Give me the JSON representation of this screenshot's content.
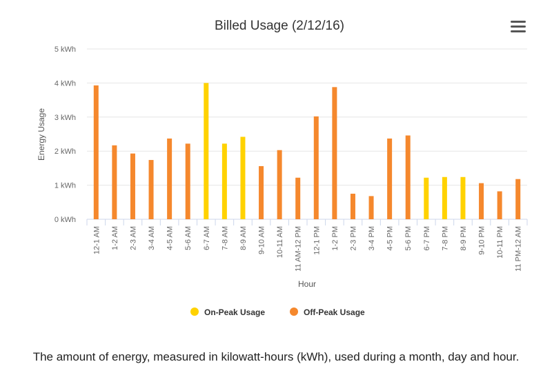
{
  "chart_data": {
    "type": "bar",
    "title": "Billed Usage (2/12/16)",
    "xlabel": "Hour",
    "ylabel": "Energy Usage",
    "ylim": [
      0,
      5
    ],
    "y_ticks": [
      "0 kWh",
      "1 kWh",
      "2 kWh",
      "3 kWh",
      "4 kWh",
      "5 kWh"
    ],
    "grid": true,
    "legend_position": "bottom-center",
    "categories": [
      "12-1 AM",
      "1-2 AM",
      "2-3 AM",
      "3-4 AM",
      "4-5 AM",
      "5-6 AM",
      "6-7 AM",
      "7-8 AM",
      "8-9 AM",
      "9-10 AM",
      "10-11 AM",
      "11 AM-12 PM",
      "12-1 PM",
      "1-2 PM",
      "2-3 PM",
      "3-4 PM",
      "4-5 PM",
      "5-6 PM",
      "6-7 PM",
      "7-8 PM",
      "8-9 PM",
      "9-10 PM",
      "10-11 PM",
      "11 PM-12 AM"
    ],
    "series": [
      {
        "name": "On-Peak Usage",
        "color": "#FFD200",
        "values": [
          null,
          null,
          null,
          null,
          null,
          null,
          4.0,
          2.22,
          2.42,
          null,
          null,
          null,
          null,
          null,
          null,
          null,
          null,
          null,
          1.22,
          1.24,
          1.24,
          null,
          null,
          null
        ]
      },
      {
        "name": "Off-Peak Usage",
        "color": "#F5882D",
        "values": [
          3.93,
          2.17,
          1.93,
          1.74,
          2.37,
          2.22,
          null,
          null,
          null,
          1.56,
          2.03,
          1.22,
          3.02,
          3.88,
          0.75,
          0.68,
          2.37,
          2.46,
          null,
          null,
          null,
          1.06,
          0.82,
          1.18
        ]
      }
    ]
  },
  "toolbar": {
    "menu_icon": "hamburger-menu-icon"
  },
  "caption": "The amount of energy, measured in kilowatt-hours (kWh), used during a month, day and hour."
}
